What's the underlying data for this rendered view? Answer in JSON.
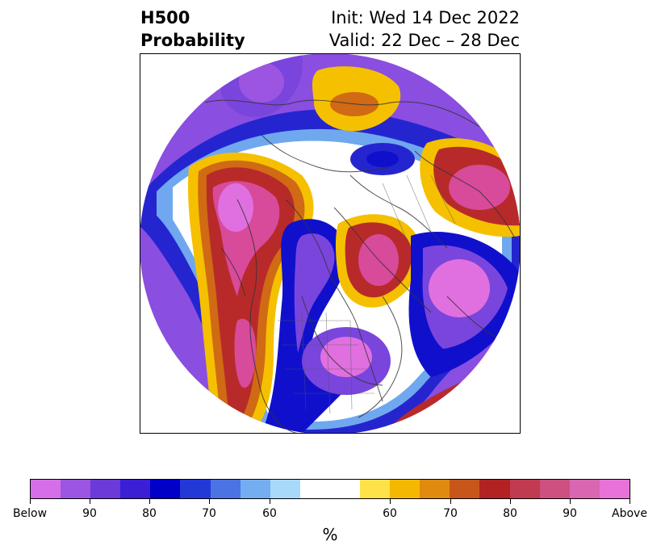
{
  "title": {
    "left_line1": "H500",
    "left_line2": "Probability",
    "right_line1": "Init: Wed 14 Dec 2022",
    "right_line2": "Valid: 22 Dec – 28 Dec"
  },
  "colorbar": {
    "unit": "%",
    "colors": [
      "#d46fe8",
      "#9b55e0",
      "#6b3ad8",
      "#3a1fd4",
      "#0000c8",
      "#2438d8",
      "#4c73e4",
      "#74aef0",
      "#a9d9fa",
      "#ffffff",
      "#ffe24a",
      "#f5b800",
      "#e08a10",
      "#c8561a",
      "#b22222",
      "#c03a50",
      "#cc5080",
      "#d966b0",
      "#e873d8"
    ],
    "tick_labels": [
      "Below",
      "90",
      "80",
      "70",
      "60",
      "60",
      "70",
      "80",
      "90",
      "Above"
    ]
  },
  "map": {
    "fill_colors": {
      "below_strong": "#e070e0",
      "below_mid": "#7a45dc",
      "below_deep": "#1010cc",
      "below_light": "#6fa8ee",
      "above_light": "#f5c000",
      "above_mid": "#d06a14",
      "above_deep": "#b82a2a",
      "above_strong": "#d84a9a"
    }
  }
}
